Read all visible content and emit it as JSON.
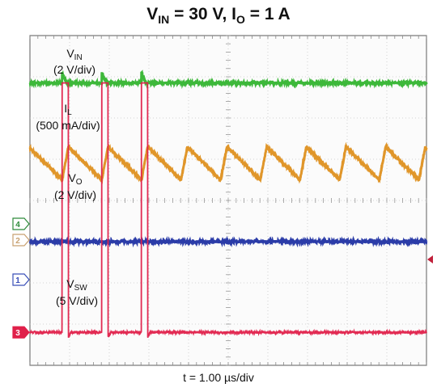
{
  "title": {
    "v_prefix": "V",
    "v_sub": "IN",
    "v_value": " = 30 V, ",
    "i_prefix": "I",
    "i_sub": "O",
    "i_value": " = 1 A"
  },
  "xlabel": "t = 1.00 µs/div",
  "chart_data": {
    "type": "line",
    "time_per_div_us": 1.0,
    "divisions_x": 10,
    "divisions_y": 8,
    "x_range_us": [
      0,
      10
    ],
    "grid": true,
    "switching_edges_us": [
      {
        "rise": 0.81,
        "fall": 0.97
      },
      {
        "rise": 1.81,
        "fall": 1.97
      },
      {
        "rise": 2.81,
        "fall": 2.97
      }
    ],
    "series": [
      {
        "name_main": "V",
        "name_sub": "IN",
        "scale": "(2 V/div)",
        "color": "#3db83a",
        "baseline_div": 6.85,
        "marker": ""
      },
      {
        "name_main": "I",
        "name_sub": "L",
        "scale": "(500 mA/div)",
        "color": "#e0962a",
        "valley_div": 4.5,
        "peak_div": 5.3,
        "marker": ""
      },
      {
        "name_main": "V",
        "name_sub": "O",
        "scale": "(2 V/div)",
        "color": "#2b3ca8",
        "baseline_div": 3.0,
        "marker": "4"
      },
      {
        "name_main": "V",
        "name_sub": "SW",
        "scale": "(5 V/div)",
        "color": "#e0204a",
        "low_div": 0.8,
        "high_div": 6.9,
        "marker": "3"
      }
    ],
    "extra_markers": [
      {
        "label": "2",
        "color": "#c8a070"
      },
      {
        "label": "1",
        "color": "#3a4fb8"
      }
    ]
  }
}
